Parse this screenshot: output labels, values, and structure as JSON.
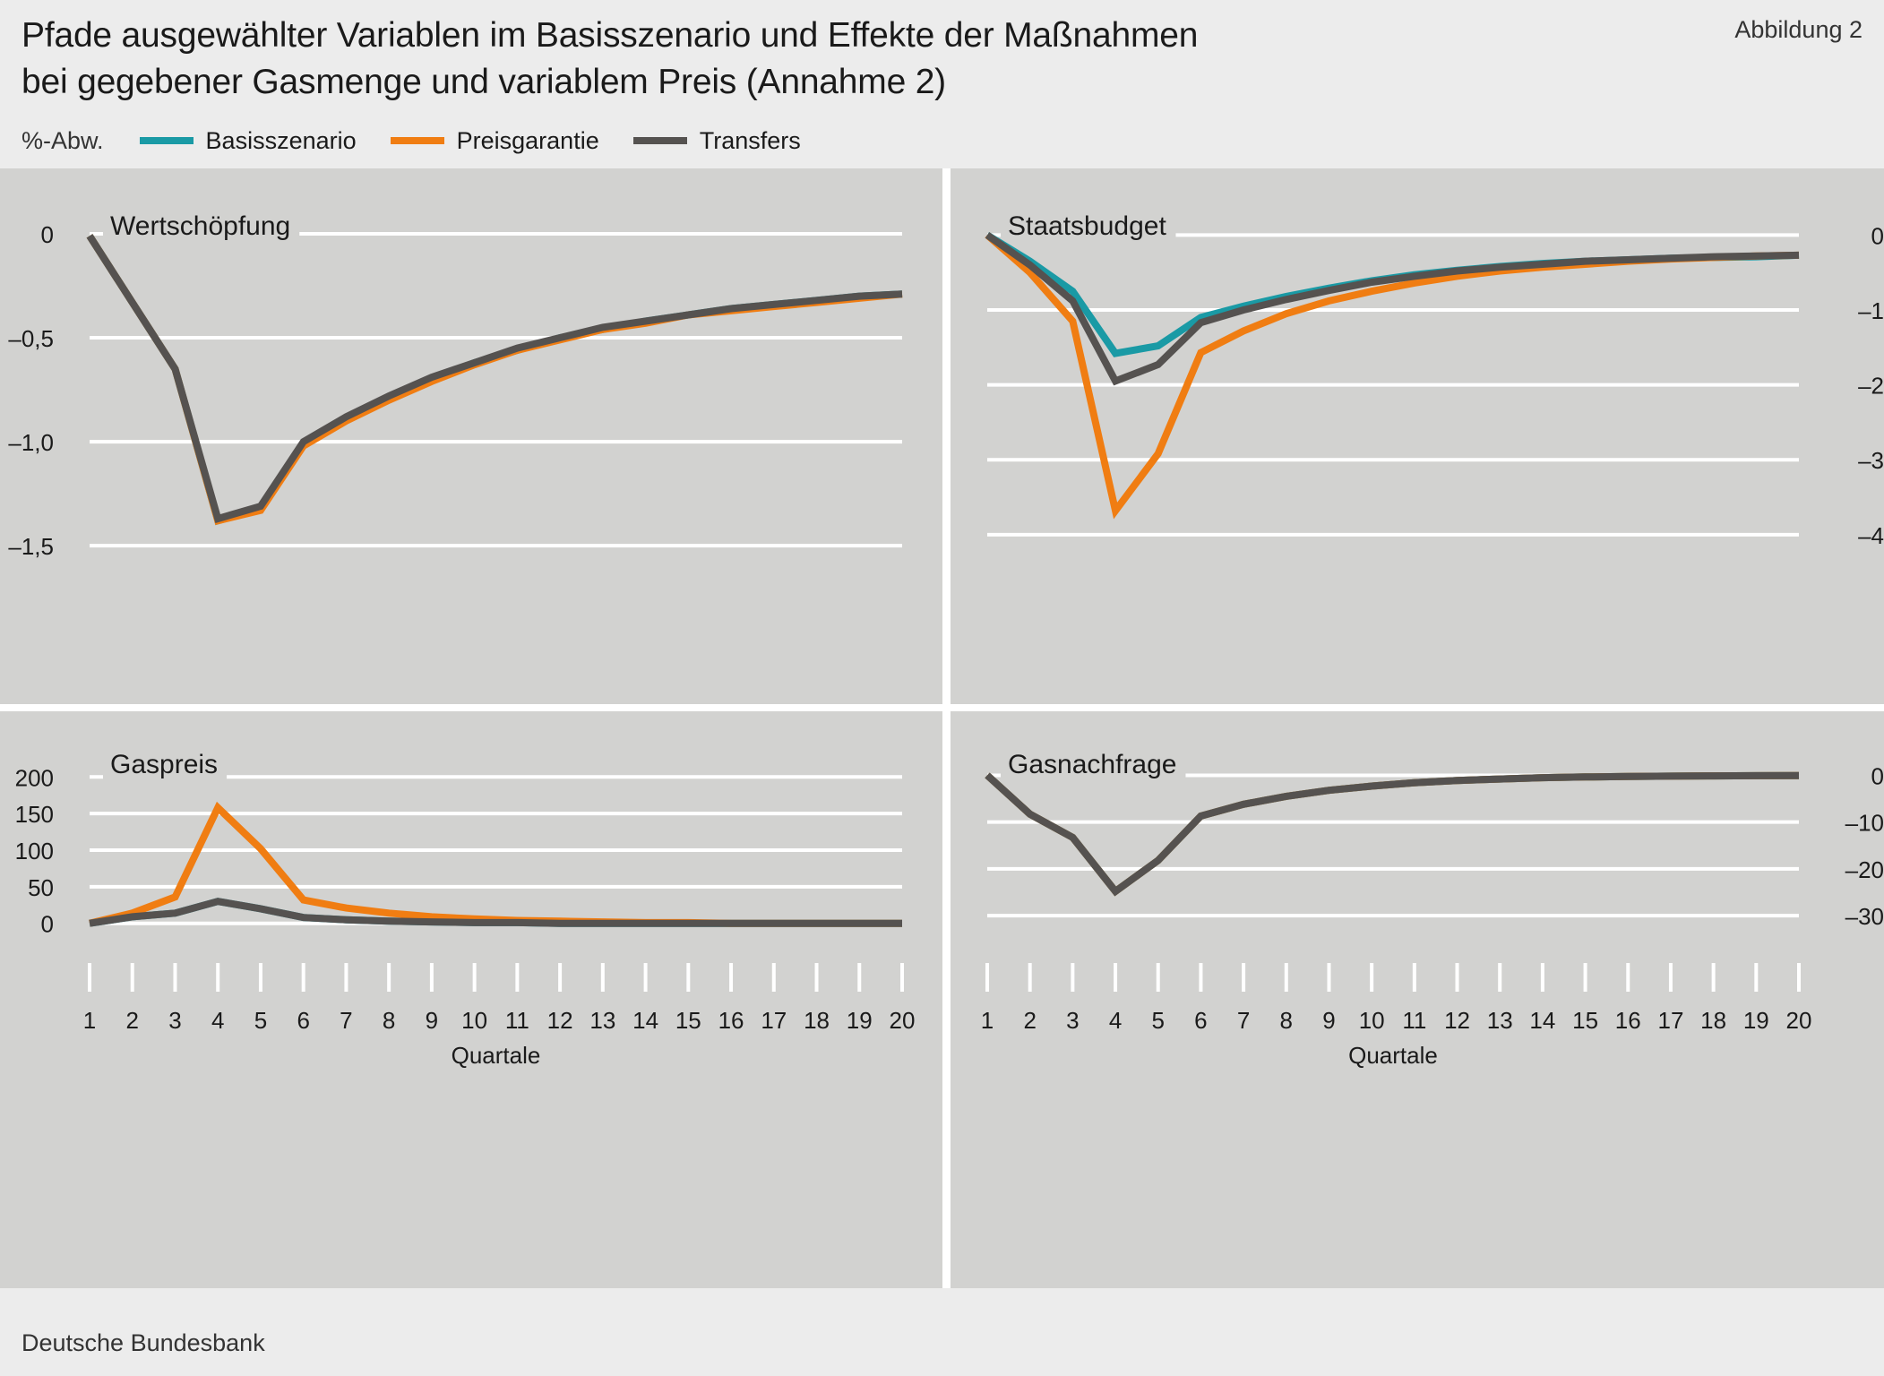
{
  "header": {
    "title_line1": "Pfade ausgewählter Variablen im Basisszenario und Effekte der Maßnahmen",
    "title_line2": "bei gegebener Gasmenge und variablem Preis (Annahme 2)",
    "figure_label": "Abbildung 2"
  },
  "legend": {
    "unit": "%-Abw.",
    "items": [
      {
        "label": "Basisszenario",
        "color": "#1a9aa5"
      },
      {
        "label": "Preisgarantie",
        "color": "#f07d12"
      },
      {
        "label": "Transfers",
        "color": "#555250"
      }
    ]
  },
  "footer": {
    "source": "Deutsche Bundesbank"
  },
  "chart_data": [
    {
      "type": "line",
      "title": "Wertschöpfung",
      "xlabel": "",
      "x": [
        1,
        2,
        3,
        4,
        5,
        6,
        7,
        8,
        9,
        10,
        11,
        12,
        13,
        14,
        15,
        16,
        17,
        18,
        19,
        20
      ],
      "ylim": [
        -1.65,
        0.03
      ],
      "yticks": [
        0,
        -0.5,
        -1.0,
        -1.5
      ],
      "ytick_labels": [
        "0",
        "–0,5",
        "–1,0",
        "–1,5"
      ],
      "series": [
        {
          "name": "Basisszenario",
          "values": [
            -0.01,
            -0.33,
            -0.65,
            -1.38,
            -1.32,
            -1.01,
            -0.89,
            -0.79,
            -0.7,
            -0.62,
            -0.56,
            -0.5,
            -0.46,
            -0.42,
            -0.39,
            -0.36,
            -0.34,
            -0.32,
            -0.3,
            -0.29
          ]
        },
        {
          "name": "Preisgarantie",
          "values": [
            -0.01,
            -0.33,
            -0.65,
            -1.38,
            -1.33,
            -1.02,
            -0.9,
            -0.8,
            -0.71,
            -0.63,
            -0.56,
            -0.51,
            -0.46,
            -0.43,
            -0.39,
            -0.37,
            -0.35,
            -0.33,
            -0.31,
            -0.29
          ]
        },
        {
          "name": "Transfers",
          "values": [
            -0.01,
            -0.33,
            -0.65,
            -1.37,
            -1.31,
            -1.0,
            -0.88,
            -0.78,
            -0.69,
            -0.62,
            -0.55,
            -0.5,
            -0.45,
            -0.42,
            -0.39,
            -0.36,
            -0.34,
            -0.32,
            -0.3,
            -0.29
          ]
        }
      ]
    },
    {
      "type": "line",
      "title": "Staatsbudget",
      "xlabel": "",
      "x": [
        1,
        2,
        3,
        4,
        5,
        6,
        7,
        8,
        9,
        10,
        11,
        12,
        13,
        14,
        15,
        16,
        17,
        18,
        19,
        20
      ],
      "ylim": [
        -4.6,
        0.1
      ],
      "yticks": [
        0,
        -1,
        -2,
        -3,
        -4
      ],
      "ytick_labels": [
        "0",
        "–1",
        "–2",
        "–3",
        "–4"
      ],
      "series": [
        {
          "name": "Basisszenario",
          "values": [
            0,
            -0.35,
            -0.75,
            -1.58,
            -1.48,
            -1.1,
            -0.95,
            -0.82,
            -0.71,
            -0.61,
            -0.53,
            -0.47,
            -0.42,
            -0.38,
            -0.35,
            -0.33,
            -0.31,
            -0.3,
            -0.29,
            -0.27
          ]
        },
        {
          "name": "Preisgarantie",
          "values": [
            0,
            -0.5,
            -1.15,
            -3.68,
            -2.92,
            -1.57,
            -1.28,
            -1.05,
            -0.88,
            -0.75,
            -0.64,
            -0.55,
            -0.48,
            -0.43,
            -0.39,
            -0.35,
            -0.32,
            -0.3,
            -0.28,
            -0.27
          ]
        },
        {
          "name": "Transfers",
          "values": [
            0,
            -0.4,
            -0.88,
            -1.95,
            -1.73,
            -1.17,
            -1.0,
            -0.86,
            -0.74,
            -0.63,
            -0.55,
            -0.48,
            -0.43,
            -0.39,
            -0.35,
            -0.33,
            -0.31,
            -0.29,
            -0.28,
            -0.27
          ]
        }
      ]
    },
    {
      "type": "line",
      "title": "Gaspreis",
      "xlabel": "Quartale",
      "x": [
        1,
        2,
        3,
        4,
        5,
        6,
        7,
        8,
        9,
        10,
        11,
        12,
        13,
        14,
        15,
        16,
        17,
        18,
        19,
        20
      ],
      "ylim": [
        -15,
        215
      ],
      "yticks": [
        0,
        50,
        100,
        150,
        200
      ],
      "ytick_labels": [
        "0",
        "50",
        "100",
        "150",
        "200"
      ],
      "series": [
        {
          "name": "Basisszenario",
          "values": [
            0,
            9,
            14,
            30,
            20,
            8,
            5,
            3,
            2,
            1,
            1,
            0,
            0,
            0,
            0,
            0,
            0,
            0,
            0,
            0
          ]
        },
        {
          "name": "Preisgarantie",
          "values": [
            0,
            14,
            36,
            158,
            102,
            32,
            21,
            14,
            9,
            6,
            4,
            3,
            2,
            1,
            1,
            0,
            0,
            0,
            0,
            0
          ]
        },
        {
          "name": "Transfers",
          "values": [
            0,
            9,
            14,
            30,
            20,
            8,
            5,
            3,
            2,
            1,
            1,
            0,
            0,
            0,
            0,
            0,
            0,
            0,
            0,
            0
          ]
        }
      ]
    },
    {
      "type": "line",
      "title": "Gasnachfrage",
      "xlabel": "Quartale",
      "x": [
        1,
        2,
        3,
        4,
        5,
        6,
        7,
        8,
        9,
        10,
        11,
        12,
        13,
        14,
        15,
        16,
        17,
        18,
        19,
        20
      ],
      "ylim": [
        -34,
        2
      ],
      "yticks": [
        0,
        -10,
        -20,
        -30
      ],
      "ytick_labels": [
        "0",
        "–10",
        "–20",
        "–30"
      ],
      "series": [
        {
          "name": "Basisszenario",
          "values": [
            0,
            -8.3,
            -13.3,
            -24.8,
            -18.2,
            -8.7,
            -6.2,
            -4.5,
            -3.2,
            -2.3,
            -1.6,
            -1.1,
            -0.8,
            -0.5,
            -0.35,
            -0.25,
            -0.18,
            -0.12,
            -0.08,
            -0.05
          ]
        },
        {
          "name": "Preisgarantie",
          "values": [
            0,
            -8.3,
            -13.3,
            -24.8,
            -18.2,
            -8.7,
            -6.2,
            -4.5,
            -3.2,
            -2.3,
            -1.6,
            -1.1,
            -0.8,
            -0.5,
            -0.35,
            -0.25,
            -0.18,
            -0.12,
            -0.08,
            -0.05
          ]
        },
        {
          "name": "Transfers",
          "values": [
            0,
            -8.3,
            -13.3,
            -24.8,
            -18.2,
            -8.7,
            -6.2,
            -4.5,
            -3.2,
            -2.3,
            -1.6,
            -1.1,
            -0.8,
            -0.5,
            -0.35,
            -0.25,
            -0.18,
            -0.12,
            -0.08,
            -0.05
          ]
        }
      ]
    }
  ]
}
